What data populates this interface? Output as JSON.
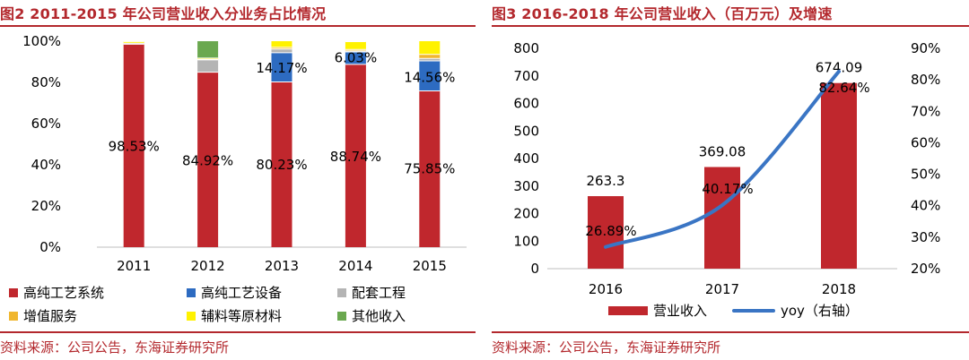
{
  "left": {
    "title": "图2  2011-2015 年公司营业收入分业务占比情况",
    "source": "资料来源：公司公告，东海证券研究所",
    "legend": [
      {
        "label": "高纯工艺系统",
        "color": "#c0272d"
      },
      {
        "label": "高纯工艺设备",
        "color": "#2d6bc1"
      },
      {
        "label": "配套工程",
        "color": "#b4b4b4"
      },
      {
        "label": "增值服务",
        "color": "#f0b62e"
      },
      {
        "label": "辅料等原材料",
        "color": "#fff200"
      },
      {
        "label": "其他收入",
        "color": "#6aa84f"
      }
    ],
    "chart_data": {
      "type": "bar",
      "stacked": true,
      "categories": [
        "2011",
        "2012",
        "2013",
        "2014",
        "2015"
      ],
      "yticks": [
        "0%",
        "20%",
        "40%",
        "60%",
        "80%",
        "100%"
      ],
      "ylim": [
        0,
        100
      ],
      "series": [
        {
          "name": "高纯工艺系统",
          "values": [
            98.53,
            84.92,
            80.23,
            88.74,
            75.85
          ]
        },
        {
          "name": "高纯工艺设备",
          "values": [
            0.0,
            0.0,
            14.17,
            6.03,
            14.56
          ]
        },
        {
          "name": "配套工程",
          "values": [
            0.5,
            6.0,
            1.8,
            0.5,
            1.2
          ]
        },
        {
          "name": "增值服务",
          "values": [
            0.0,
            0.3,
            0.8,
            0.7,
            2.0
          ]
        },
        {
          "name": "辅料等原材料",
          "values": [
            0.8,
            0.6,
            3.0,
            3.8,
            6.39
          ]
        },
        {
          "name": "其他收入",
          "values": [
            0.17,
            8.18,
            0.0,
            0.23,
            0.0
          ]
        }
      ],
      "labels": [
        {
          "text": "98.53%",
          "cat": 0,
          "y": 49
        },
        {
          "text": "84.92%",
          "cat": 1,
          "y": 42
        },
        {
          "text": "80.23%",
          "cat": 2,
          "y": 40
        },
        {
          "text": "88.74%",
          "cat": 3,
          "y": 44
        },
        {
          "text": "75.85%",
          "cat": 4,
          "y": 38
        },
        {
          "text": "14.17%",
          "cat": 2,
          "y": 87
        },
        {
          "text": "6.03%",
          "cat": 3,
          "y": 92
        },
        {
          "text": "14.56%",
          "cat": 4,
          "y": 82.5
        }
      ]
    }
  },
  "right": {
    "title": "图3  2016-2018 年公司营业收入（百万元）及增速",
    "source": "资料来源：公司公告，东海证券研究所",
    "legend": [
      {
        "label": "营业收入",
        "color": "#c0272d",
        "kind": "bar"
      },
      {
        "label": "yoy（右轴）",
        "color": "#3a75c4",
        "kind": "line"
      }
    ],
    "chart_data": {
      "type": "bar",
      "categories": [
        "2016",
        "2017",
        "2018"
      ],
      "yticks_left": [
        "0",
        "100",
        "200",
        "300",
        "400",
        "500",
        "600",
        "700",
        "800"
      ],
      "yticks_right": [
        "20%",
        "30%",
        "40%",
        "50%",
        "60%",
        "70%",
        "80%",
        "90%"
      ],
      "ylim_left": [
        0,
        800
      ],
      "ylim_right": [
        20,
        90
      ],
      "series": [
        {
          "name": "营业收入",
          "axis": "left",
          "values": [
            263.3,
            369.08,
            674.09
          ],
          "labels": [
            "263.3",
            "369.08",
            "674.09"
          ]
        },
        {
          "name": "yoy（右轴）",
          "axis": "right",
          "type": "line",
          "values": [
            26.89,
            40.17,
            82.64
          ],
          "labels": [
            "26.89%",
            "40.17%",
            "82.64%"
          ]
        }
      ]
    }
  }
}
